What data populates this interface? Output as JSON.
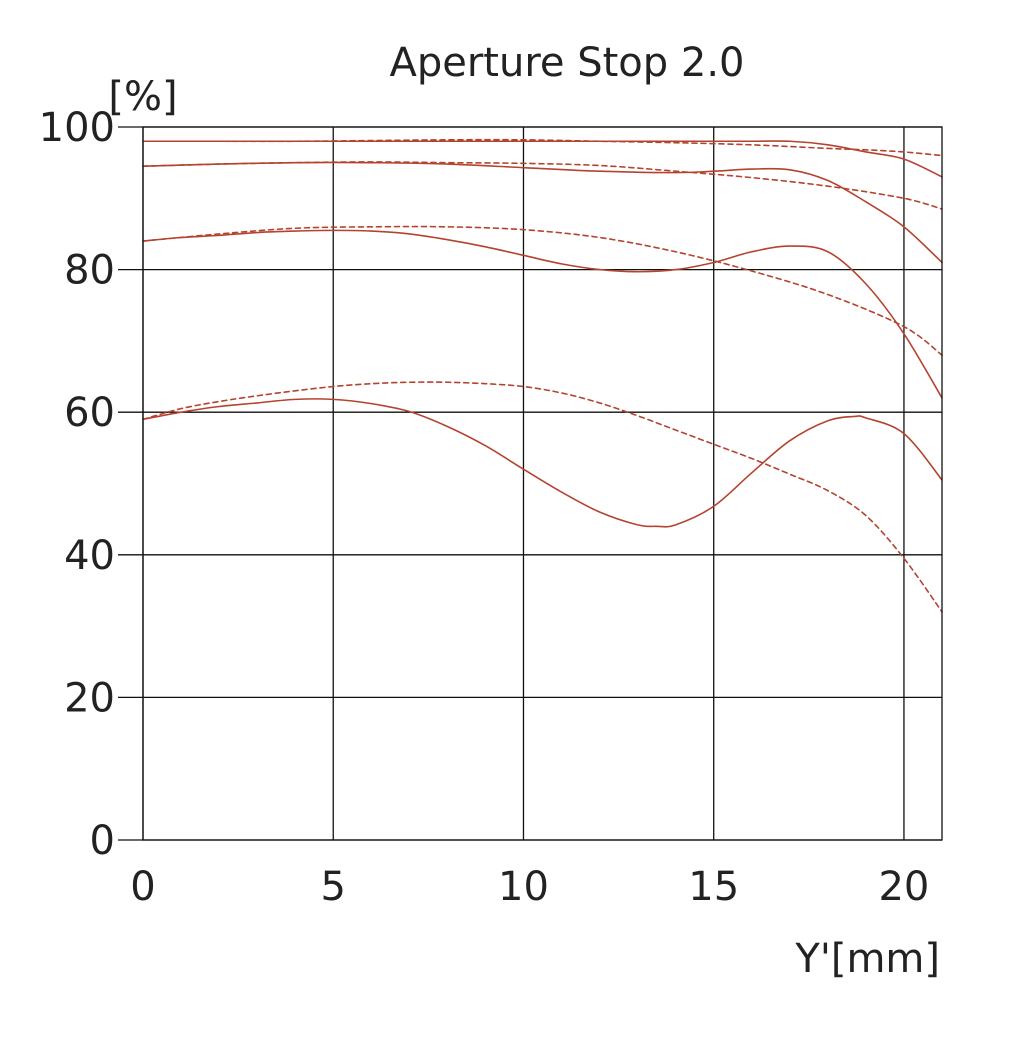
{
  "chart_data": {
    "type": "line",
    "title": "Aperture Stop 2.0",
    "xlabel": "Y'[mm]",
    "ylabel": "[%]",
    "xlim": [
      0,
      21
    ],
    "ylim": [
      0,
      100
    ],
    "xticks": [
      "0",
      "5",
      "10",
      "15",
      "20"
    ],
    "yticks": [
      "0",
      "20",
      "40",
      "60",
      "80",
      "100"
    ],
    "grid": true,
    "color": "#b5432f",
    "series": [
      {
        "style": "solid",
        "x": [
          0,
          2,
          4,
          6,
          8,
          10,
          12,
          14,
          16,
          17,
          18,
          19,
          20,
          21
        ],
        "values": [
          98,
          98,
          98,
          98,
          98,
          98,
          98,
          98,
          98,
          98,
          97.5,
          96.5,
          95.5,
          93
        ]
      },
      {
        "style": "dashed",
        "x": [
          0,
          2,
          4,
          6,
          8,
          10,
          12,
          14,
          16,
          18,
          19,
          20,
          21
        ],
        "values": [
          98,
          98,
          98,
          98.1,
          98.2,
          98.2,
          98,
          97.8,
          97.5,
          97,
          96.8,
          96.5,
          96
        ]
      },
      {
        "style": "solid",
        "x": [
          0,
          2,
          4,
          6,
          8,
          10,
          12,
          14,
          15,
          16,
          17,
          18,
          19,
          20,
          21
        ],
        "values": [
          94.5,
          94.8,
          95,
          95,
          94.8,
          94.3,
          93.8,
          93.6,
          93.8,
          94.1,
          94,
          92.5,
          89.5,
          86,
          81
        ]
      },
      {
        "style": "dashed",
        "x": [
          0,
          2,
          4,
          6,
          8,
          10,
          12,
          14,
          16,
          18,
          20,
          21
        ],
        "values": [
          94.5,
          94.8,
          95,
          95.1,
          95,
          94.9,
          94.6,
          93.8,
          92.9,
          91.7,
          90,
          88.5
        ]
      },
      {
        "style": "solid",
        "x": [
          0,
          1,
          2,
          3,
          4,
          5,
          6,
          7,
          8,
          9,
          10,
          11,
          12,
          13,
          14,
          15,
          16,
          17,
          18,
          19,
          20,
          21
        ],
        "values": [
          84,
          84.5,
          84.8,
          85.2,
          85.4,
          85.5,
          85.4,
          85,
          84.2,
          83.2,
          82,
          80.8,
          80,
          79.7,
          80,
          81,
          82.5,
          83.3,
          82.5,
          78,
          71,
          62
        ]
      },
      {
        "style": "dashed",
        "x": [
          0,
          2,
          4,
          6,
          8,
          10,
          12,
          14,
          16,
          18,
          20,
          21
        ],
        "values": [
          84,
          85,
          85.8,
          86,
          86,
          85.6,
          84.5,
          82.5,
          79.8,
          76.5,
          72,
          68
        ]
      },
      {
        "style": "solid",
        "x": [
          0,
          1,
          2,
          3,
          4,
          5,
          6,
          7,
          8,
          9,
          10,
          11,
          12,
          13,
          13.5,
          14,
          15,
          16,
          17,
          18,
          18.7,
          19,
          20,
          21
        ],
        "values": [
          59,
          60,
          60.8,
          61.3,
          61.8,
          61.8,
          61.2,
          60.1,
          58,
          55.3,
          52,
          48.8,
          46,
          44.2,
          44,
          44.2,
          46.8,
          51.5,
          56,
          58.8,
          59.4,
          59.2,
          57,
          50.5
        ]
      },
      {
        "style": "dashed",
        "x": [
          0,
          1,
          2,
          3,
          4,
          5,
          6,
          7,
          8,
          9,
          10,
          11,
          12,
          13,
          14,
          15,
          16,
          17,
          18,
          19,
          20,
          21
        ],
        "values": [
          59,
          60.5,
          61.5,
          62.3,
          63,
          63.6,
          64,
          64.2,
          64.2,
          64,
          63.6,
          62.7,
          61.3,
          59.5,
          57.5,
          55.5,
          53.5,
          51.3,
          49,
          45.5,
          39.5,
          32
        ]
      }
    ]
  }
}
